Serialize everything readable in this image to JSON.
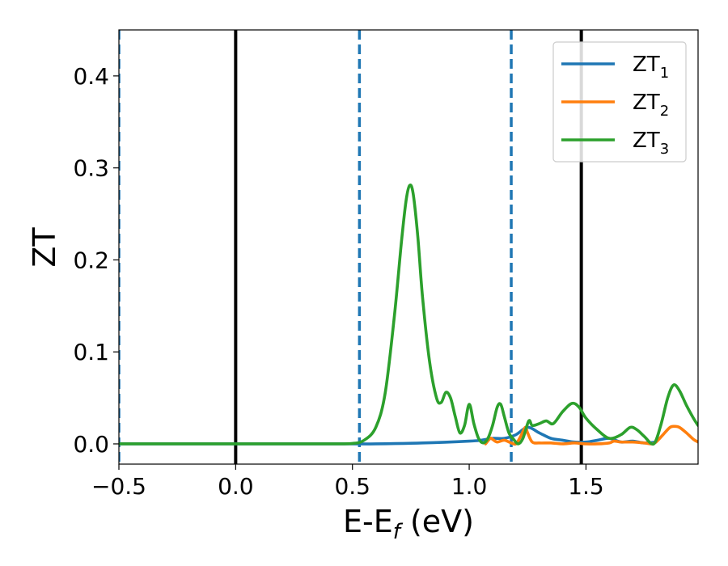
{
  "chart_data": {
    "type": "line",
    "title": "",
    "xlabel": {
      "main": "E-E",
      "sub": "f",
      "rest": " (eV)"
    },
    "ylabel": "ZT",
    "xlim": [
      -0.5,
      1.98
    ],
    "ylim": [
      -0.022,
      0.45
    ],
    "xticks": [
      {
        "value": -0.5,
        "label": "−0.5"
      },
      {
        "value": 0.0,
        "label": "0.0"
      },
      {
        "value": 0.5,
        "label": "0.5"
      },
      {
        "value": 1.0,
        "label": "1.0"
      },
      {
        "value": 1.5,
        "label": "1.5"
      }
    ],
    "yticks": [
      {
        "value": 0.0,
        "label": "0.0"
      },
      {
        "value": 0.1,
        "label": "0.1"
      },
      {
        "value": 0.2,
        "label": "0.2"
      },
      {
        "value": 0.3,
        "label": "0.3"
      },
      {
        "value": 0.4,
        "label": "0.4"
      }
    ],
    "grid": false,
    "legend_position": "top-right",
    "vlines": [
      {
        "x": -0.5,
        "style": "dashed",
        "color": "#1f77b4"
      },
      {
        "x": 0.0,
        "style": "solid",
        "color": "#000000"
      },
      {
        "x": 0.53,
        "style": "dashed",
        "color": "#1f77b4"
      },
      {
        "x": 1.18,
        "style": "dashed",
        "color": "#1f77b4"
      },
      {
        "x": 1.48,
        "style": "solid",
        "color": "#000000"
      }
    ],
    "series": [
      {
        "name": "ZT",
        "sub": "1",
        "color": "#1f77b4",
        "x": [
          -0.5,
          0.0,
          0.5,
          0.6,
          0.8,
          1.0,
          1.05,
          1.1,
          1.15,
          1.2,
          1.25,
          1.3,
          1.35,
          1.4,
          1.45,
          1.5,
          1.55,
          1.6,
          1.65,
          1.7,
          1.75,
          1.8
        ],
        "y": [
          0.0,
          0.0,
          0.0,
          0.0,
          0.001,
          0.003,
          0.004,
          0.006,
          0.006,
          0.01,
          0.018,
          0.012,
          0.006,
          0.004,
          0.002,
          0.002,
          0.004,
          0.006,
          0.002,
          0.003,
          0.001,
          0.002
        ]
      },
      {
        "name": "ZT",
        "sub": "2",
        "color": "#ff7f0e",
        "x": [
          1.07,
          1.09,
          1.1,
          1.12,
          1.15,
          1.18,
          1.2,
          1.22,
          1.24,
          1.25,
          1.27,
          1.3,
          1.35,
          1.4,
          1.45,
          1.5,
          1.55,
          1.6,
          1.62,
          1.65,
          1.7,
          1.75,
          1.78,
          1.8,
          1.83,
          1.86,
          1.88,
          1.9,
          1.93,
          1.96,
          1.98
        ],
        "y": [
          0.0,
          0.006,
          0.005,
          0.002,
          0.004,
          0.001,
          0.0,
          0.008,
          0.018,
          0.012,
          0.002,
          0.001,
          0.001,
          0.0,
          0.001,
          0.0,
          0.0,
          0.001,
          0.003,
          0.002,
          0.002,
          0.001,
          0.0,
          0.002,
          0.01,
          0.018,
          0.019,
          0.018,
          0.012,
          0.005,
          0.002
        ]
      },
      {
        "name": "ZT",
        "sub": "3",
        "color": "#2ca02c",
        "x": [
          -0.5,
          0.0,
          0.4,
          0.5,
          0.55,
          0.6,
          0.64,
          0.68,
          0.71,
          0.73,
          0.745,
          0.76,
          0.78,
          0.8,
          0.83,
          0.86,
          0.88,
          0.9,
          0.92,
          0.94,
          0.96,
          0.98,
          1.0,
          1.02,
          1.04,
          1.06,
          1.08,
          1.1,
          1.12,
          1.135,
          1.15,
          1.17,
          1.19,
          1.21,
          1.23,
          1.255,
          1.27,
          1.3,
          1.33,
          1.36,
          1.4,
          1.44,
          1.47,
          1.5,
          1.55,
          1.6,
          1.65,
          1.69,
          1.72,
          1.75,
          1.79,
          1.82,
          1.85,
          1.875,
          1.9,
          1.93,
          1.96,
          1.98
        ],
        "y": [
          0.0,
          0.0,
          0.0,
          0.0005,
          0.004,
          0.018,
          0.055,
          0.14,
          0.22,
          0.265,
          0.281,
          0.272,
          0.225,
          0.16,
          0.09,
          0.05,
          0.045,
          0.056,
          0.05,
          0.03,
          0.012,
          0.02,
          0.043,
          0.022,
          0.006,
          0.001,
          0.006,
          0.02,
          0.04,
          0.043,
          0.03,
          0.012,
          0.005,
          0.0,
          0.006,
          0.025,
          0.02,
          0.022,
          0.025,
          0.022,
          0.035,
          0.044,
          0.04,
          0.028,
          0.015,
          0.006,
          0.01,
          0.018,
          0.015,
          0.008,
          0.0,
          0.02,
          0.05,
          0.064,
          0.058,
          0.042,
          0.028,
          0.02
        ]
      }
    ]
  }
}
